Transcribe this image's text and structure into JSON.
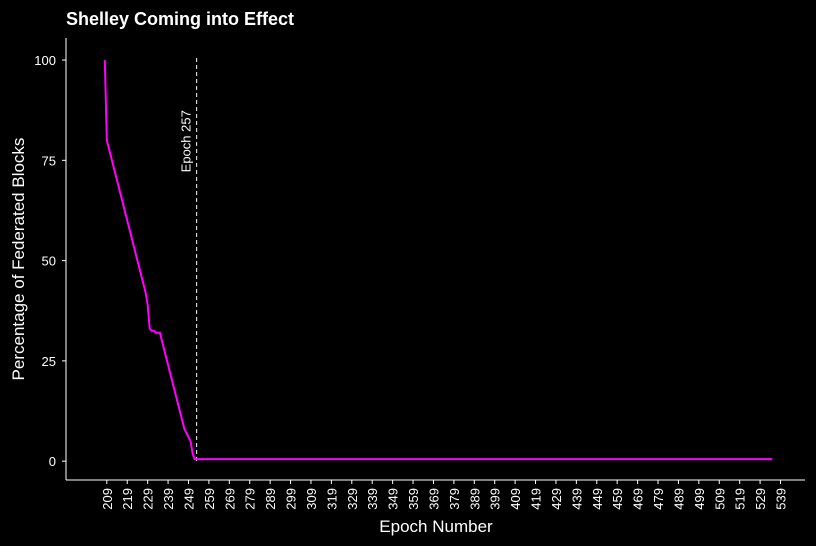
{
  "chart_data": {
    "type": "line",
    "title": "Shelley Coming into Effect",
    "x_label": "Epoch Number",
    "y_label": "Percentage of Federated Blocks",
    "background": "#000000",
    "x": [
      208,
      209,
      210,
      211,
      212,
      213,
      214,
      215,
      216,
      217,
      218,
      219,
      220,
      221,
      222,
      223,
      224,
      225,
      226,
      227,
      228,
      229,
      230,
      231,
      232,
      233,
      234,
      235,
      236,
      237,
      238,
      239,
      240,
      241,
      242,
      243,
      244,
      245,
      246,
      247,
      248,
      249,
      250,
      251,
      252,
      253,
      535
    ],
    "series": [
      {
        "name": "Federated Blocks",
        "color": "#ff00ff",
        "values": [
          100,
          80,
          78,
          76,
          74,
          72,
          70,
          68,
          66,
          64,
          62,
          60,
          58,
          56,
          54,
          52,
          50,
          48,
          46,
          44,
          42,
          39,
          33,
          32.5,
          32.5,
          32,
          32,
          32,
          30,
          28,
          26,
          24,
          22,
          20,
          18,
          16,
          14,
          12,
          10,
          8,
          7,
          6,
          5,
          2,
          0.5,
          0.5,
          0.5
        ]
      }
    ],
    "annotation": {
      "text": "Epoch 257",
      "x": 253
    },
    "xlim": [
      189,
      551
    ],
    "ylim": [
      -4.7,
      105.5
    ],
    "xticks": [
      209,
      219,
      229,
      239,
      249,
      259,
      269,
      279,
      289,
      299,
      309,
      319,
      329,
      339,
      349,
      359,
      369,
      379,
      389,
      399,
      409,
      419,
      429,
      439,
      449,
      459,
      469,
      479,
      489,
      499,
      509,
      519,
      529,
      539
    ],
    "yticks": [
      0,
      25,
      50,
      75,
      100
    ]
  }
}
